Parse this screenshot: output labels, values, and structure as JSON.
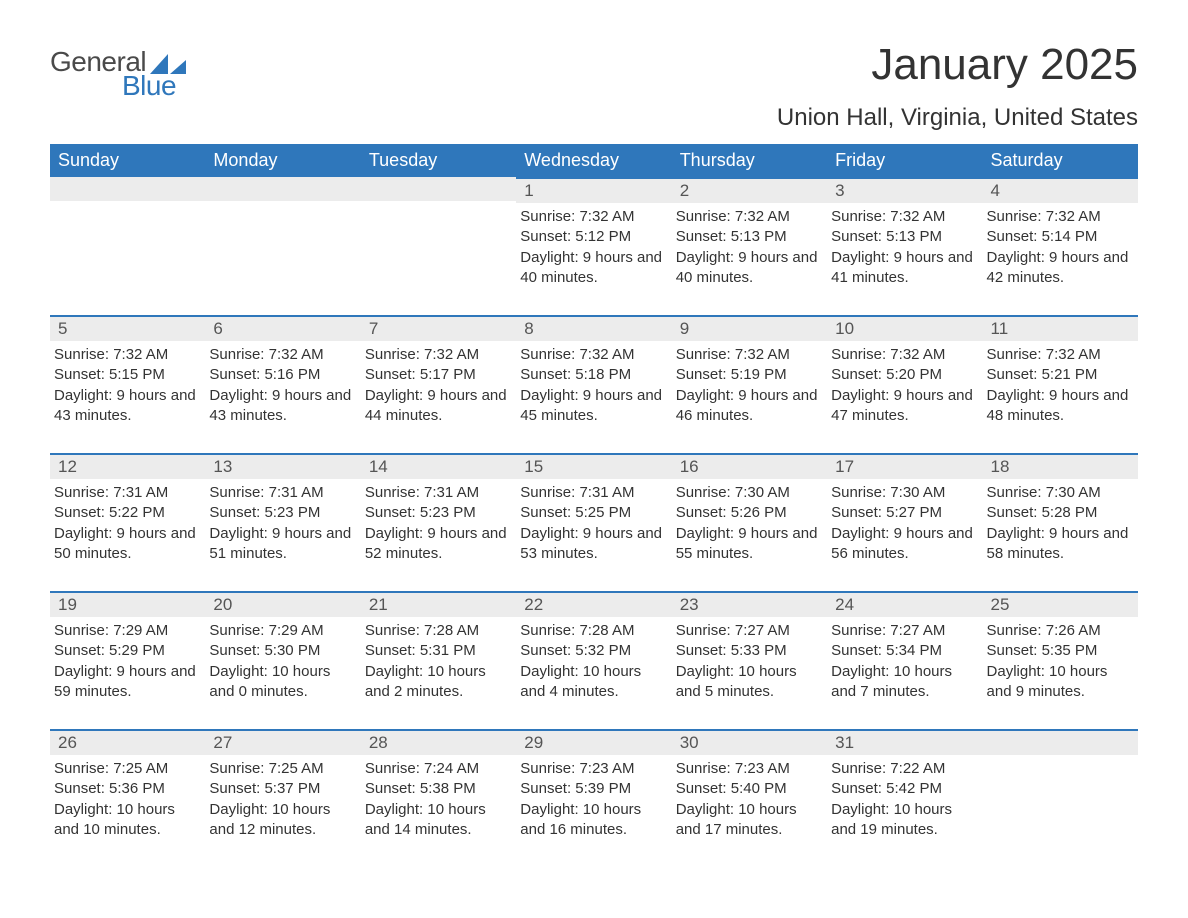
{
  "logo": {
    "general": "General",
    "blue": "Blue",
    "shape_color": "#2f77bb"
  },
  "title": {
    "month": "January 2025",
    "location": "Union Hall, Virginia, United States"
  },
  "colors": {
    "header_bg": "#2f77bb",
    "header_text": "#ffffff",
    "daynum_bg": "#ececec",
    "daynum_text": "#555555",
    "body_text": "#333333",
    "border": "#2f77bb",
    "page_bg": "#ffffff"
  },
  "typography": {
    "title_fontsize": 44,
    "location_fontsize": 24,
    "header_fontsize": 18,
    "daynum_fontsize": 17,
    "body_fontsize": 15
  },
  "layout": {
    "columns": 7,
    "rows": 5,
    "leading_blanks": 3,
    "trailing_blanks": 1
  },
  "weekdays": [
    "Sunday",
    "Monday",
    "Tuesday",
    "Wednesday",
    "Thursday",
    "Friday",
    "Saturday"
  ],
  "days": [
    {
      "n": "1",
      "sunrise": "Sunrise: 7:32 AM",
      "sunset": "Sunset: 5:12 PM",
      "daylight": "Daylight: 9 hours and 40 minutes."
    },
    {
      "n": "2",
      "sunrise": "Sunrise: 7:32 AM",
      "sunset": "Sunset: 5:13 PM",
      "daylight": "Daylight: 9 hours and 40 minutes."
    },
    {
      "n": "3",
      "sunrise": "Sunrise: 7:32 AM",
      "sunset": "Sunset: 5:13 PM",
      "daylight": "Daylight: 9 hours and 41 minutes."
    },
    {
      "n": "4",
      "sunrise": "Sunrise: 7:32 AM",
      "sunset": "Sunset: 5:14 PM",
      "daylight": "Daylight: 9 hours and 42 minutes."
    },
    {
      "n": "5",
      "sunrise": "Sunrise: 7:32 AM",
      "sunset": "Sunset: 5:15 PM",
      "daylight": "Daylight: 9 hours and 43 minutes."
    },
    {
      "n": "6",
      "sunrise": "Sunrise: 7:32 AM",
      "sunset": "Sunset: 5:16 PM",
      "daylight": "Daylight: 9 hours and 43 minutes."
    },
    {
      "n": "7",
      "sunrise": "Sunrise: 7:32 AM",
      "sunset": "Sunset: 5:17 PM",
      "daylight": "Daylight: 9 hours and 44 minutes."
    },
    {
      "n": "8",
      "sunrise": "Sunrise: 7:32 AM",
      "sunset": "Sunset: 5:18 PM",
      "daylight": "Daylight: 9 hours and 45 minutes."
    },
    {
      "n": "9",
      "sunrise": "Sunrise: 7:32 AM",
      "sunset": "Sunset: 5:19 PM",
      "daylight": "Daylight: 9 hours and 46 minutes."
    },
    {
      "n": "10",
      "sunrise": "Sunrise: 7:32 AM",
      "sunset": "Sunset: 5:20 PM",
      "daylight": "Daylight: 9 hours and 47 minutes."
    },
    {
      "n": "11",
      "sunrise": "Sunrise: 7:32 AM",
      "sunset": "Sunset: 5:21 PM",
      "daylight": "Daylight: 9 hours and 48 minutes."
    },
    {
      "n": "12",
      "sunrise": "Sunrise: 7:31 AM",
      "sunset": "Sunset: 5:22 PM",
      "daylight": "Daylight: 9 hours and 50 minutes."
    },
    {
      "n": "13",
      "sunrise": "Sunrise: 7:31 AM",
      "sunset": "Sunset: 5:23 PM",
      "daylight": "Daylight: 9 hours and 51 minutes."
    },
    {
      "n": "14",
      "sunrise": "Sunrise: 7:31 AM",
      "sunset": "Sunset: 5:23 PM",
      "daylight": "Daylight: 9 hours and 52 minutes."
    },
    {
      "n": "15",
      "sunrise": "Sunrise: 7:31 AM",
      "sunset": "Sunset: 5:25 PM",
      "daylight": "Daylight: 9 hours and 53 minutes."
    },
    {
      "n": "16",
      "sunrise": "Sunrise: 7:30 AM",
      "sunset": "Sunset: 5:26 PM",
      "daylight": "Daylight: 9 hours and 55 minutes."
    },
    {
      "n": "17",
      "sunrise": "Sunrise: 7:30 AM",
      "sunset": "Sunset: 5:27 PM",
      "daylight": "Daylight: 9 hours and 56 minutes."
    },
    {
      "n": "18",
      "sunrise": "Sunrise: 7:30 AM",
      "sunset": "Sunset: 5:28 PM",
      "daylight": "Daylight: 9 hours and 58 minutes."
    },
    {
      "n": "19",
      "sunrise": "Sunrise: 7:29 AM",
      "sunset": "Sunset: 5:29 PM",
      "daylight": "Daylight: 9 hours and 59 minutes."
    },
    {
      "n": "20",
      "sunrise": "Sunrise: 7:29 AM",
      "sunset": "Sunset: 5:30 PM",
      "daylight": "Daylight: 10 hours and 0 minutes."
    },
    {
      "n": "21",
      "sunrise": "Sunrise: 7:28 AM",
      "sunset": "Sunset: 5:31 PM",
      "daylight": "Daylight: 10 hours and 2 minutes."
    },
    {
      "n": "22",
      "sunrise": "Sunrise: 7:28 AM",
      "sunset": "Sunset: 5:32 PM",
      "daylight": "Daylight: 10 hours and 4 minutes."
    },
    {
      "n": "23",
      "sunrise": "Sunrise: 7:27 AM",
      "sunset": "Sunset: 5:33 PM",
      "daylight": "Daylight: 10 hours and 5 minutes."
    },
    {
      "n": "24",
      "sunrise": "Sunrise: 7:27 AM",
      "sunset": "Sunset: 5:34 PM",
      "daylight": "Daylight: 10 hours and 7 minutes."
    },
    {
      "n": "25",
      "sunrise": "Sunrise: 7:26 AM",
      "sunset": "Sunset: 5:35 PM",
      "daylight": "Daylight: 10 hours and 9 minutes."
    },
    {
      "n": "26",
      "sunrise": "Sunrise: 7:25 AM",
      "sunset": "Sunset: 5:36 PM",
      "daylight": "Daylight: 10 hours and 10 minutes."
    },
    {
      "n": "27",
      "sunrise": "Sunrise: 7:25 AM",
      "sunset": "Sunset: 5:37 PM",
      "daylight": "Daylight: 10 hours and 12 minutes."
    },
    {
      "n": "28",
      "sunrise": "Sunrise: 7:24 AM",
      "sunset": "Sunset: 5:38 PM",
      "daylight": "Daylight: 10 hours and 14 minutes."
    },
    {
      "n": "29",
      "sunrise": "Sunrise: 7:23 AM",
      "sunset": "Sunset: 5:39 PM",
      "daylight": "Daylight: 10 hours and 16 minutes."
    },
    {
      "n": "30",
      "sunrise": "Sunrise: 7:23 AM",
      "sunset": "Sunset: 5:40 PM",
      "daylight": "Daylight: 10 hours and 17 minutes."
    },
    {
      "n": "31",
      "sunrise": "Sunrise: 7:22 AM",
      "sunset": "Sunset: 5:42 PM",
      "daylight": "Daylight: 10 hours and 19 minutes."
    }
  ]
}
